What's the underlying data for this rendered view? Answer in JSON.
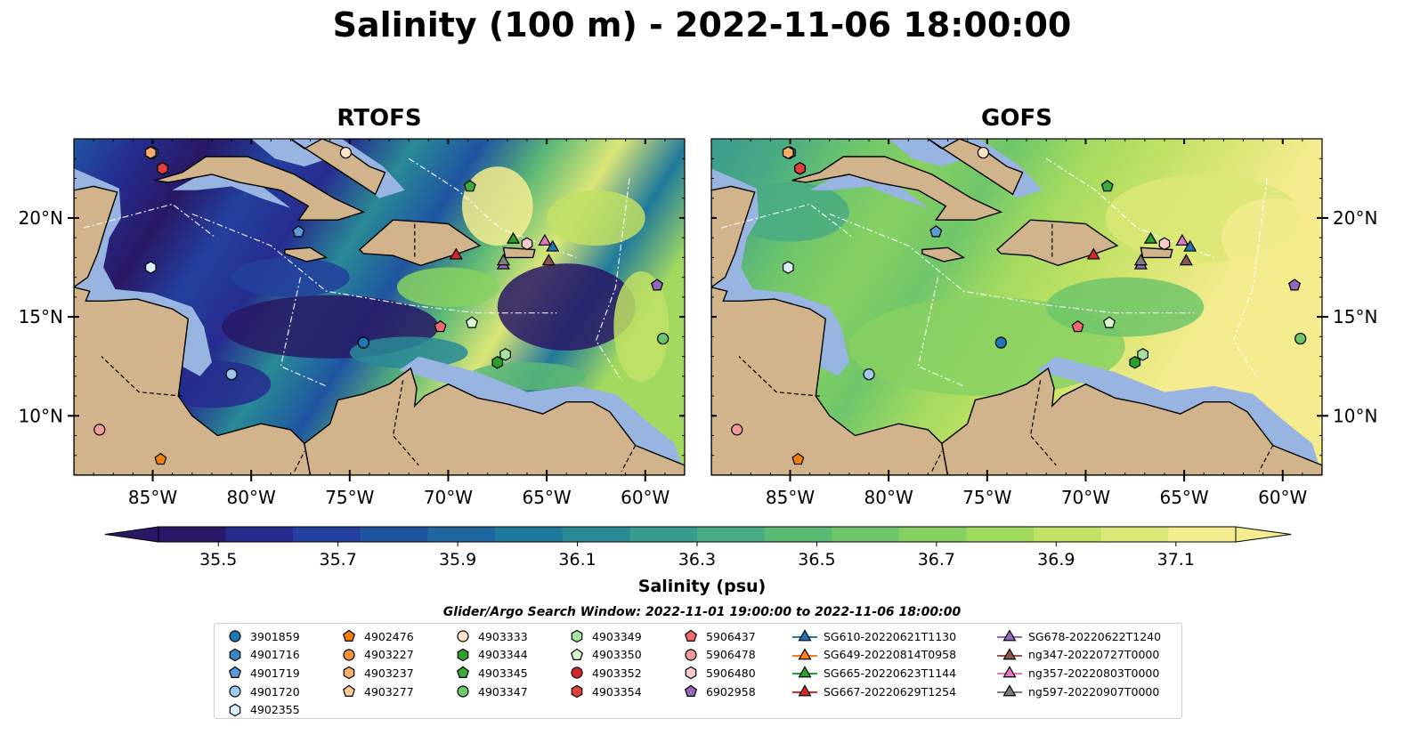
{
  "title": "Salinity (100 m) - 2022-11-06 18:00:00",
  "panels": [
    {
      "title": "RTOFS"
    },
    {
      "title": "GOFS"
    }
  ],
  "map": {
    "lon_range": [
      -89,
      -58
    ],
    "lat_range": [
      7,
      24
    ],
    "lon_ticks": [
      "85°W",
      "80°W",
      "75°W",
      "70°W",
      "65°W",
      "60°W"
    ],
    "lat_ticks": [
      "20°N",
      "15°N",
      "10°N"
    ],
    "land_color": "#d2b48c",
    "shelf_color": "#98b4e0"
  },
  "colorbar": {
    "label": "Salinity (psu)",
    "min": 35.4,
    "max": 37.2,
    "ticks": [
      "35.5",
      "35.7",
      "35.9",
      "36.1",
      "36.3",
      "36.5",
      "36.7",
      "36.9",
      "37.1"
    ],
    "colors": [
      "#281865",
      "#262c8e",
      "#23409e",
      "#1f54a0",
      "#1d679e",
      "#1f799b",
      "#298a96",
      "#389b8e",
      "#49ab83",
      "#5bb976",
      "#6fc66a",
      "#87d162",
      "#a2da60",
      "#bfe164",
      "#dbe777",
      "#f4ec8e"
    ]
  },
  "search_window": "Glider/Argo Search Window: 2022-11-01 19:00:00 to 2022-11-06 18:00:00",
  "legend": {
    "columns": [
      [
        {
          "label": "3901859",
          "marker": "circle",
          "color": "#1f77b4"
        },
        {
          "label": "4901716",
          "marker": "hexagon",
          "color": "#3a86c8"
        },
        {
          "label": "4901719",
          "marker": "pentagon",
          "color": "#5b9bd9"
        },
        {
          "label": "4901720",
          "marker": "circle",
          "color": "#9ec9ec"
        },
        {
          "label": "4902355",
          "marker": "hexagon",
          "color": "#dbeefb"
        }
      ],
      [
        {
          "label": "4902476",
          "marker": "pentagon",
          "color": "#f07f0e"
        },
        {
          "label": "4903227",
          "marker": "circle",
          "color": "#f5913a"
        },
        {
          "label": "4903237",
          "marker": "hexagon",
          "color": "#f8ad6c"
        },
        {
          "label": "4903277",
          "marker": "pentagon",
          "color": "#fcc998"
        }
      ],
      [
        {
          "label": "4903333",
          "marker": "circle",
          "color": "#fde3c7"
        },
        {
          "label": "4903344",
          "marker": "hexagon",
          "color": "#2ca02c"
        },
        {
          "label": "4903345",
          "marker": "pentagon",
          "color": "#3aaa3a"
        },
        {
          "label": "4903347",
          "marker": "circle",
          "color": "#6cc66c"
        }
      ],
      [
        {
          "label": "4903349",
          "marker": "hexagon",
          "color": "#a6e3a0"
        },
        {
          "label": "4903350",
          "marker": "pentagon",
          "color": "#d9f7cf"
        },
        {
          "label": "4903352",
          "marker": "circle",
          "color": "#d62728"
        },
        {
          "label": "4903354",
          "marker": "hexagon",
          "color": "#e0413f"
        }
      ],
      [
        {
          "label": "5906437",
          "marker": "pentagon",
          "color": "#ee6a6e"
        },
        {
          "label": "5906478",
          "marker": "circle",
          "color": "#f39b9b"
        },
        {
          "label": "5906480",
          "marker": "hexagon",
          "color": "#fac9c9"
        },
        {
          "label": "6902958",
          "marker": "pentagon",
          "color": "#9467bd"
        }
      ],
      [
        {
          "label": "SG610-20220621T1130",
          "marker": "triangle",
          "color": "#1f77b4"
        },
        {
          "label": "SG649-20220814T0958",
          "marker": "triangle",
          "color": "#ff7f0e"
        },
        {
          "label": "SG665-20220623T1144",
          "marker": "triangle",
          "color": "#2ca02c"
        },
        {
          "label": "SG667-20220629T1254",
          "marker": "triangle",
          "color": "#d62728"
        }
      ],
      [
        {
          "label": "SG678-20220622T1240",
          "marker": "triangle",
          "color": "#9467bd"
        },
        {
          "label": "ng347-20220727T0000",
          "marker": "triangle",
          "color": "#8c564b"
        },
        {
          "label": "ng357-20220803T0000",
          "marker": "triangle",
          "color": "#e377c2"
        },
        {
          "label": "ng597-20220907T0000",
          "marker": "triangle",
          "color": "#7f7f7f"
        }
      ]
    ]
  },
  "observations": [
    {
      "id": "3901859",
      "lon": -74.3,
      "lat": 13.7
    },
    {
      "id": "4901716",
      "lon": -85.0,
      "lat": 23.3
    },
    {
      "id": "4901719",
      "lon": -77.6,
      "lat": 19.3
    },
    {
      "id": "4901720",
      "lon": -81.0,
      "lat": 12.1
    },
    {
      "id": "4902355",
      "lon": -85.1,
      "lat": 17.5
    },
    {
      "id": "4902476",
      "lon": -84.6,
      "lat": 7.8
    },
    {
      "id": "4903227",
      "lon": -85.1,
      "lat": 23.3
    },
    {
      "id": "4903237",
      "lon": -85.1,
      "lat": 23.3
    },
    {
      "id": "4903333",
      "lon": -75.2,
      "lat": 23.3
    },
    {
      "id": "4903344",
      "lon": -67.5,
      "lat": 12.7
    },
    {
      "id": "4903345",
      "lon": -68.9,
      "lat": 21.6
    },
    {
      "id": "4903347",
      "lon": -59.1,
      "lat": 13.9
    },
    {
      "id": "4903349",
      "lon": -67.1,
      "lat": 13.1
    },
    {
      "id": "4903350",
      "lon": -68.8,
      "lat": 14.7
    },
    {
      "id": "4903352",
      "lon": -84.5,
      "lat": 22.5
    },
    {
      "id": "4903354",
      "lon": -84.5,
      "lat": 22.5
    },
    {
      "id": "5906437",
      "lon": -70.4,
      "lat": 14.5
    },
    {
      "id": "5906478",
      "lon": -87.7,
      "lat": 9.3
    },
    {
      "id": "5906480",
      "lon": -66.0,
      "lat": 18.7
    },
    {
      "id": "6902958",
      "lon": -59.4,
      "lat": 16.6
    },
    {
      "id": "SG610-20220621T1130",
      "lon": -64.7,
      "lat": 18.5
    },
    {
      "id": "SG665-20220623T1144",
      "lon": -66.7,
      "lat": 18.9
    },
    {
      "id": "SG667-20220629T1254",
      "lon": -69.6,
      "lat": 18.1
    },
    {
      "id": "SG678-20220622T1240",
      "lon": -67.2,
      "lat": 17.6
    },
    {
      "id": "ng347-20220727T0000",
      "lon": -64.9,
      "lat": 17.8
    },
    {
      "id": "ng357-20220803T0000",
      "lon": -65.1,
      "lat": 18.8
    },
    {
      "id": "ng597-20220907T0000",
      "lon": -67.2,
      "lat": 17.8
    }
  ]
}
